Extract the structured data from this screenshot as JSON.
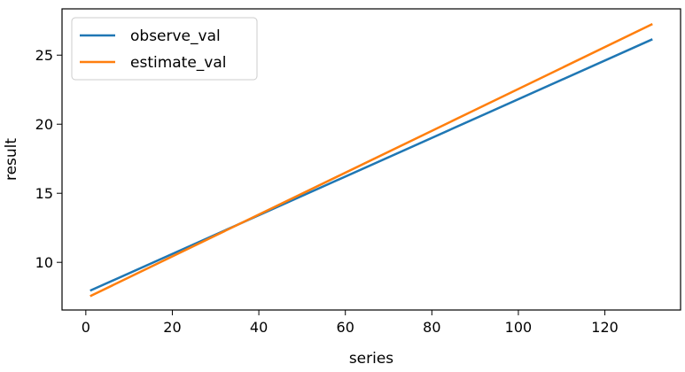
{
  "chart_data": {
    "type": "line",
    "title": "",
    "xlabel": "series",
    "ylabel": "result",
    "xlim": [
      -5.5,
      137.5
    ],
    "ylim": [
      6.55,
      28.35
    ],
    "x_ticks": [
      0,
      20,
      40,
      60,
      80,
      100,
      120
    ],
    "y_ticks": [
      10,
      15,
      20,
      25
    ],
    "grid": false,
    "legend": "top-left",
    "series": [
      {
        "name": "observe_val",
        "color": "#1f77b4",
        "x": [
          1,
          131
        ],
        "y": [
          7.95,
          26.15
        ]
      },
      {
        "name": "estimate_val",
        "color": "#ff7f0e",
        "x": [
          1,
          131
        ],
        "y": [
          7.55,
          27.25
        ]
      }
    ]
  }
}
